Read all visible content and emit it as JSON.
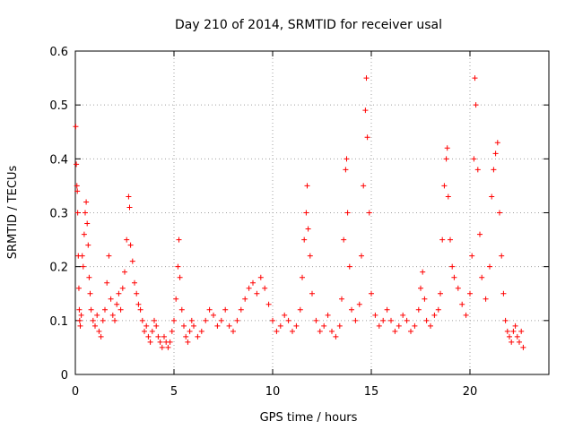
{
  "chart_data": {
    "type": "scatter",
    "title": "Day 210 of 2014, SRMTID for receiver usal",
    "xlabel": "GPS time / hours",
    "ylabel": "SRMTID / TECUs",
    "xlim": [
      0,
      24
    ],
    "ylim": [
      0,
      0.6
    ],
    "xticks": [
      0,
      5,
      10,
      15,
      20
    ],
    "yticks": [
      0,
      0.1,
      0.2,
      0.3,
      0.4,
      0.5,
      0.6
    ],
    "xtick_labels": [
      "0",
      "5",
      "10",
      "15",
      "20"
    ],
    "ytick_labels": [
      "0",
      "0.1",
      "0.2",
      "0.3",
      "0.4",
      "0.5",
      "0.6"
    ],
    "grid": true,
    "marker": "+",
    "series_color": "#ff0000",
    "series": [
      {
        "name": "SRMTID",
        "points": [
          [
            0.02,
            0.46
          ],
          [
            0.05,
            0.39
          ],
          [
            0.08,
            0.35
          ],
          [
            0.1,
            0.34
          ],
          [
            0.12,
            0.3
          ],
          [
            0.15,
            0.22
          ],
          [
            0.18,
            0.16
          ],
          [
            0.2,
            0.12
          ],
          [
            0.22,
            0.1
          ],
          [
            0.25,
            0.09
          ],
          [
            0.3,
            0.11
          ],
          [
            0.35,
            0.22
          ],
          [
            0.4,
            0.2
          ],
          [
            0.45,
            0.26
          ],
          [
            0.5,
            0.3
          ],
          [
            0.55,
            0.32
          ],
          [
            0.6,
            0.28
          ],
          [
            0.65,
            0.24
          ],
          [
            0.7,
            0.18
          ],
          [
            0.75,
            0.15
          ],
          [
            0.8,
            0.12
          ],
          [
            0.9,
            0.1
          ],
          [
            1.0,
            0.09
          ],
          [
            1.1,
            0.11
          ],
          [
            1.2,
            0.08
          ],
          [
            1.3,
            0.07
          ],
          [
            1.4,
            0.1
          ],
          [
            1.5,
            0.12
          ],
          [
            1.6,
            0.17
          ],
          [
            1.7,
            0.22
          ],
          [
            1.8,
            0.14
          ],
          [
            1.9,
            0.11
          ],
          [
            2.0,
            0.1
          ],
          [
            2.1,
            0.13
          ],
          [
            2.2,
            0.15
          ],
          [
            2.3,
            0.12
          ],
          [
            2.4,
            0.16
          ],
          [
            2.5,
            0.19
          ],
          [
            2.6,
            0.25
          ],
          [
            2.7,
            0.33
          ],
          [
            2.75,
            0.31
          ],
          [
            2.8,
            0.24
          ],
          [
            2.9,
            0.21
          ],
          [
            3.0,
            0.17
          ],
          [
            3.1,
            0.15
          ],
          [
            3.2,
            0.13
          ],
          [
            3.3,
            0.12
          ],
          [
            3.4,
            0.1
          ],
          [
            3.5,
            0.08
          ],
          [
            3.6,
            0.09
          ],
          [
            3.7,
            0.07
          ],
          [
            3.8,
            0.06
          ],
          [
            3.9,
            0.08
          ],
          [
            4.0,
            0.1
          ],
          [
            4.1,
            0.09
          ],
          [
            4.2,
            0.07
          ],
          [
            4.3,
            0.06
          ],
          [
            4.4,
            0.05
          ],
          [
            4.5,
            0.07
          ],
          [
            4.6,
            0.06
          ],
          [
            4.7,
            0.05
          ],
          [
            4.8,
            0.06
          ],
          [
            4.9,
            0.08
          ],
          [
            5.0,
            0.1
          ],
          [
            5.1,
            0.14
          ],
          [
            5.2,
            0.2
          ],
          [
            5.25,
            0.25
          ],
          [
            5.3,
            0.18
          ],
          [
            5.4,
            0.12
          ],
          [
            5.5,
            0.09
          ],
          [
            5.6,
            0.07
          ],
          [
            5.7,
            0.06
          ],
          [
            5.8,
            0.08
          ],
          [
            5.9,
            0.1
          ],
          [
            6.0,
            0.09
          ],
          [
            6.2,
            0.07
          ],
          [
            6.4,
            0.08
          ],
          [
            6.6,
            0.1
          ],
          [
            6.8,
            0.12
          ],
          [
            7.0,
            0.11
          ],
          [
            7.2,
            0.09
          ],
          [
            7.4,
            0.1
          ],
          [
            7.6,
            0.12
          ],
          [
            7.8,
            0.09
          ],
          [
            8.0,
            0.08
          ],
          [
            8.2,
            0.1
          ],
          [
            8.4,
            0.12
          ],
          [
            8.6,
            0.14
          ],
          [
            8.8,
            0.16
          ],
          [
            9.0,
            0.17
          ],
          [
            9.2,
            0.15
          ],
          [
            9.4,
            0.18
          ],
          [
            9.6,
            0.16
          ],
          [
            9.8,
            0.13
          ],
          [
            10.0,
            0.1
          ],
          [
            10.2,
            0.08
          ],
          [
            10.4,
            0.09
          ],
          [
            10.6,
            0.11
          ],
          [
            10.8,
            0.1
          ],
          [
            11.0,
            0.08
          ],
          [
            11.2,
            0.09
          ],
          [
            11.4,
            0.12
          ],
          [
            11.5,
            0.18
          ],
          [
            11.6,
            0.25
          ],
          [
            11.7,
            0.3
          ],
          [
            11.75,
            0.35
          ],
          [
            11.8,
            0.27
          ],
          [
            11.9,
            0.22
          ],
          [
            12.0,
            0.15
          ],
          [
            12.2,
            0.1
          ],
          [
            12.4,
            0.08
          ],
          [
            12.6,
            0.09
          ],
          [
            12.8,
            0.11
          ],
          [
            13.0,
            0.08
          ],
          [
            13.2,
            0.07
          ],
          [
            13.4,
            0.09
          ],
          [
            13.5,
            0.14
          ],
          [
            13.6,
            0.25
          ],
          [
            13.7,
            0.38
          ],
          [
            13.75,
            0.4
          ],
          [
            13.8,
            0.3
          ],
          [
            13.9,
            0.2
          ],
          [
            14.0,
            0.12
          ],
          [
            14.2,
            0.1
          ],
          [
            14.4,
            0.13
          ],
          [
            14.5,
            0.22
          ],
          [
            14.6,
            0.35
          ],
          [
            14.7,
            0.49
          ],
          [
            14.75,
            0.55
          ],
          [
            14.8,
            0.44
          ],
          [
            14.9,
            0.3
          ],
          [
            15.0,
            0.15
          ],
          [
            15.2,
            0.11
          ],
          [
            15.4,
            0.09
          ],
          [
            15.6,
            0.1
          ],
          [
            15.8,
            0.12
          ],
          [
            16.0,
            0.1
          ],
          [
            16.2,
            0.08
          ],
          [
            16.4,
            0.09
          ],
          [
            16.6,
            0.11
          ],
          [
            16.8,
            0.1
          ],
          [
            17.0,
            0.08
          ],
          [
            17.2,
            0.09
          ],
          [
            17.4,
            0.12
          ],
          [
            17.5,
            0.16
          ],
          [
            17.6,
            0.19
          ],
          [
            17.7,
            0.14
          ],
          [
            17.8,
            0.1
          ],
          [
            18.0,
            0.09
          ],
          [
            18.2,
            0.11
          ],
          [
            18.4,
            0.12
          ],
          [
            18.5,
            0.15
          ],
          [
            18.6,
            0.25
          ],
          [
            18.7,
            0.35
          ],
          [
            18.8,
            0.4
          ],
          [
            18.85,
            0.42
          ],
          [
            18.9,
            0.33
          ],
          [
            19.0,
            0.25
          ],
          [
            19.1,
            0.2
          ],
          [
            19.2,
            0.18
          ],
          [
            19.4,
            0.16
          ],
          [
            19.6,
            0.13
          ],
          [
            19.8,
            0.11
          ],
          [
            20.0,
            0.15
          ],
          [
            20.1,
            0.22
          ],
          [
            20.2,
            0.4
          ],
          [
            20.25,
            0.55
          ],
          [
            20.3,
            0.5
          ],
          [
            20.4,
            0.38
          ],
          [
            20.5,
            0.26
          ],
          [
            20.6,
            0.18
          ],
          [
            20.8,
            0.14
          ],
          [
            21.0,
            0.2
          ],
          [
            21.1,
            0.33
          ],
          [
            21.2,
            0.38
          ],
          [
            21.3,
            0.41
          ],
          [
            21.4,
            0.43
          ],
          [
            21.5,
            0.3
          ],
          [
            21.6,
            0.22
          ],
          [
            21.7,
            0.15
          ],
          [
            21.8,
            0.1
          ],
          [
            21.9,
            0.08
          ],
          [
            22.0,
            0.07
          ],
          [
            22.1,
            0.06
          ],
          [
            22.2,
            0.08
          ],
          [
            22.3,
            0.09
          ],
          [
            22.4,
            0.07
          ],
          [
            22.5,
            0.06
          ],
          [
            22.6,
            0.08
          ],
          [
            22.7,
            0.05
          ]
        ]
      }
    ]
  }
}
